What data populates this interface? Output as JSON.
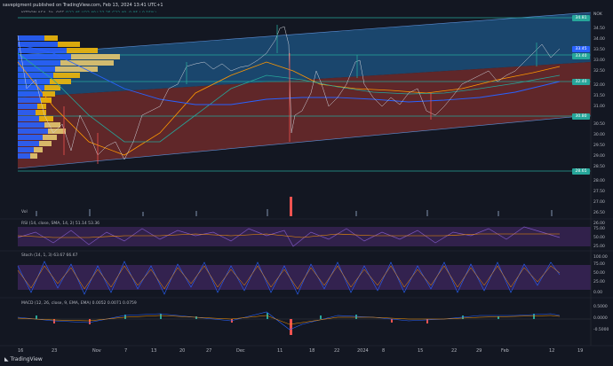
{
  "header": {
    "title": "savepigment published on TradingView.com, Feb 13, 2024 13:41 UTC+1"
  },
  "symbol": {
    "line1": "KITRON ASA, 1h, OSE",
    "ohlc": "O33.45 H33.49 L33.35 C33.40 -0.05 (-0.15%)",
    "vbvp": "VBVP (Number Of Rows, 24, Up/Down, 70) ",
    "sma1": "SMA (50) 32.88",
    "sma2": "SMA (100, 200) 33.17 33.34"
  },
  "panels": {
    "vol": "Vol",
    "rsi": "RSI (14, close, SMA, 14, 2) 51.14 53.36",
    "stoch": "Stoch (14, 1, 3) 63.67 66.67",
    "macd": "MACD (12, 26, close, 9, EMA, EMA) 0.0052 0.0071 0.0759"
  },
  "price_axis": {
    "currency": "NOK",
    "ticks": [
      "34.50",
      "34.00",
      "33.50",
      "33.00",
      "32.50",
      "32.00",
      "31.50",
      "31.00",
      "30.50",
      "30.00",
      "29.50",
      "29.00",
      "28.50",
      "28.00",
      "27.50",
      "27.00",
      "26.50",
      "26.00"
    ],
    "badges": [
      {
        "label": "34.81",
        "color": "#26a69a"
      },
      {
        "label": "33.45",
        "color": "#2962ff"
      },
      {
        "label": "33.40",
        "color": "#26a69a"
      },
      {
        "label": "32.40",
        "color": "#26a69a"
      },
      {
        "label": "30.80",
        "color": "#26a69a"
      },
      {
        "label": "28.65",
        "color": "#26a69a"
      }
    ]
  },
  "rsi_axis": [
    "75.00",
    "50.00",
    "25.00"
  ],
  "stoch_axis": [
    "100.00",
    "75.00",
    "50.00",
    "25.00",
    "0.00"
  ],
  "macd_axis": [
    "0.5000",
    "0.0000",
    "-0.5000"
  ],
  "time_axis": [
    "16",
    "23",
    "Nov",
    "7",
    "13",
    "20",
    "27",
    "Dec",
    "11",
    "18",
    "22",
    "2024",
    "8",
    "15",
    "22",
    "29",
    "Feb",
    "12",
    "19"
  ],
  "footer": {
    "logo": "TradingView"
  },
  "colors": {
    "bg": "#131722",
    "blue_zone": "#1c4f7a",
    "red_zone": "#6e2a2a",
    "accent": "#2962ff",
    "up": "#26a69a",
    "down": "#ef5350"
  }
}
